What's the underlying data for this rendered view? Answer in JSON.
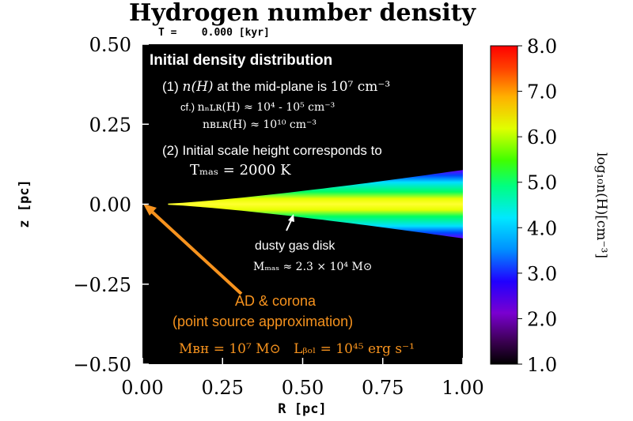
{
  "chart_data": {
    "type": "heatmap",
    "title": "Hydrogen number density",
    "subtitle": "T =    0.000 [kyr]",
    "xlabel": "R [pc]",
    "ylabel": "z [pc]",
    "xlim": [
      0.0,
      1.0
    ],
    "ylim": [
      -0.5,
      0.5
    ],
    "x_ticks": [
      "0.00",
      "0.25",
      "0.50",
      "0.75",
      "1.00"
    ],
    "y_ticks": [
      "0.50",
      "0.25",
      "0.00",
      "−0.25",
      "−0.50"
    ],
    "colorbar": {
      "label": "log₁₀n(H)[cm⁻³]",
      "range": [
        1.0,
        8.0
      ],
      "ticks": [
        "8.0",
        "7.0",
        "6.0",
        "5.0",
        "4.0",
        "3.0",
        "2.0",
        "1.0"
      ]
    },
    "disk": {
      "r_inner_pc": 0.08,
      "r_outer_pc": 1.0,
      "half_height_at_outer_pc": 0.105,
      "midplane_log_density": 7.0
    },
    "annotations": {
      "box_title": "Initial density distribution",
      "item1_prefix": "(1) ",
      "item1_math": "n(H)",
      "item1_text": " at the mid-plane is ",
      "item1_value": "10⁷ cm⁻³",
      "cf_label": "cf.) ",
      "nlr_text": "nₙʟʀ(H) ≈ 10⁴ - 10⁵ cm⁻³",
      "blr_text": "nʙʟʀ(H) ≈ 10¹⁰ cm⁻³",
      "item2_line1": "(2) Initial scale height corresponds to",
      "item2_line2": "Tₘₐₛ = 2000 K",
      "disk_label": "dusty gas disk",
      "disk_mass": "Mₘₐₛ ≈ 2.3 × 10⁴ M⊙",
      "source_line1": "AD & corona",
      "source_line2": "(point source approximation)",
      "bh_params": "Mʙʜ = 10⁷ M⊙   Lᵦₒₗ = 10⁴⁵ erg s⁻¹"
    },
    "colors": {
      "background": "#000000",
      "arrow": "#f7931e",
      "source_text": "#f7931e",
      "annotation_text": "#ffffff"
    }
  }
}
